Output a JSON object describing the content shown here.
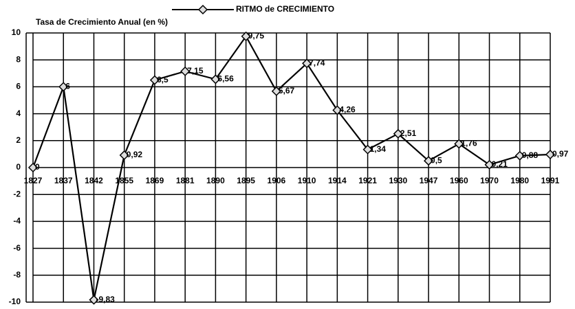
{
  "chart_data": {
    "type": "line",
    "y_axis_label": "Tasa de Crecimiento Anual (en %)",
    "categories": [
      "1827",
      "1837",
      "1842",
      "1855",
      "1869",
      "1881",
      "1890",
      "1895",
      "1906",
      "1910",
      "1914",
      "1921",
      "1930",
      "1947",
      "1960",
      "1970",
      "1980",
      "1991"
    ],
    "series": [
      {
        "name": "RITMO de CRECIMIENTO",
        "color": "#000000",
        "values": [
          0,
          6,
          -9.83,
          0.92,
          6.5,
          7.15,
          6.56,
          9.75,
          5.67,
          7.74,
          4.26,
          1.34,
          2.51,
          0.5,
          1.76,
          0.21,
          0.88,
          0.97
        ],
        "value_labels": [
          "0",
          "6",
          "-9,83",
          "0,92",
          "6,5",
          "7,15",
          "6,56",
          "9,75",
          "5,67",
          "7,74",
          "4,26",
          "1,34",
          "2,51",
          "0,5",
          "1,76",
          "0,21",
          "0,88",
          "0,97"
        ]
      }
    ],
    "ylim": [
      -10,
      10
    ],
    "yticks": [
      -10,
      -8,
      -6,
      -4,
      -2,
      0,
      2,
      4,
      6,
      8,
      10
    ],
    "grid": true,
    "legend": "top"
  }
}
